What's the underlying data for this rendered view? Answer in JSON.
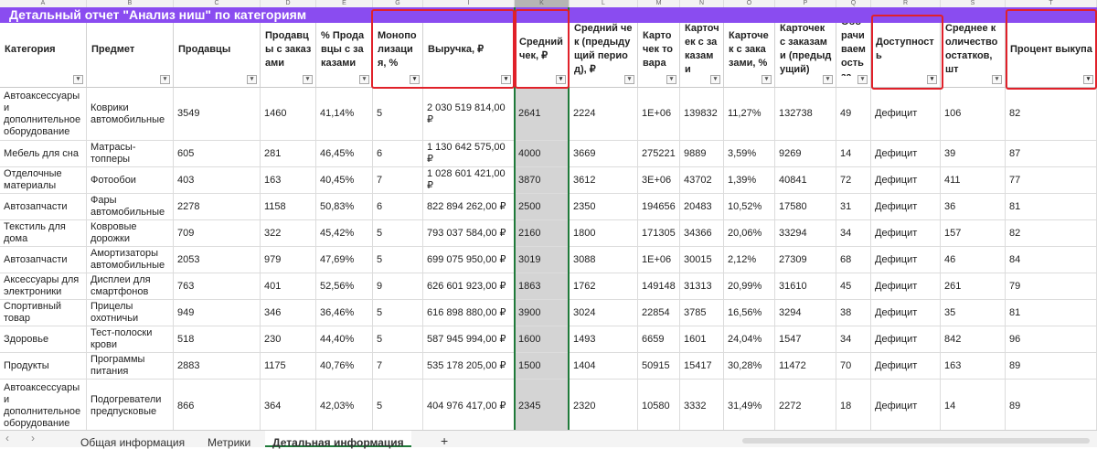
{
  "column_letters": [
    "A",
    "B",
    "C",
    "D",
    "E",
    "G",
    "I",
    "K",
    "L",
    "M",
    "N",
    "O",
    "P",
    "Q",
    "R",
    "S",
    "T"
  ],
  "title": "Детальный отчет \"Анализ ниш\" по категориям",
  "headers": [
    "Категория",
    "Предмет",
    "Продавцы",
    "Продавцы с заказами",
    "% Продавцы с заказами",
    "Монополизация, %",
    "Выручка, ₽",
    "Средний чек, ₽",
    "Средний чек (предыдущий период), ₽",
    "Карточек товара",
    "Карточек с заказами",
    "Карточек с заказами, %",
    "Карточек с заказами (предыдущий)",
    "Оборачиваемость за",
    "Доступность",
    "Среднее количество остатков, шт",
    "Процент выкупа"
  ],
  "rows": [
    [
      "Автоаксессуары и дополнительное оборудование",
      "Коврики автомобильные",
      "3549",
      "1460",
      "41,14%",
      "5",
      "2 030 519 814,00 ₽",
      "2641",
      "2224",
      "1E+06",
      "139832",
      "11,27%",
      "132738",
      "49",
      "Дефицит",
      "106",
      "82"
    ],
    [
      "Мебель для сна",
      "Матрасы-топперы",
      "605",
      "281",
      "46,45%",
      "6",
      "1 130 642 575,00 ₽",
      "4000",
      "3669",
      "275221",
      "9889",
      "3,59%",
      "9269",
      "14",
      "Дефицит",
      "39",
      "87"
    ],
    [
      "Отделочные материалы",
      "Фотообои",
      "403",
      "163",
      "40,45%",
      "7",
      "1 028 601 421,00 ₽",
      "3870",
      "3612",
      "3E+06",
      "43702",
      "1,39%",
      "40841",
      "72",
      "Дефицит",
      "411",
      "77"
    ],
    [
      "Автозапчасти",
      "Фары автомобильные",
      "2278",
      "1158",
      "50,83%",
      "6",
      "822 894 262,00 ₽",
      "2500",
      "2350",
      "194656",
      "20483",
      "10,52%",
      "17580",
      "31",
      "Дефицит",
      "36",
      "81"
    ],
    [
      "Текстиль для дома",
      "Ковровые дорожки",
      "709",
      "322",
      "45,42%",
      "5",
      "793 037 584,00 ₽",
      "2160",
      "1800",
      "171305",
      "34366",
      "20,06%",
      "33294",
      "34",
      "Дефицит",
      "157",
      "82"
    ],
    [
      "Автозапчасти",
      "Амортизаторы автомобильные",
      "2053",
      "979",
      "47,69%",
      "5",
      "699 075 950,00 ₽",
      "3019",
      "3088",
      "1E+06",
      "30015",
      "2,12%",
      "27309",
      "68",
      "Дефицит",
      "46",
      "84"
    ],
    [
      "Аксессуары для электроники",
      "Дисплеи для смартфонов",
      "763",
      "401",
      "52,56%",
      "9",
      "626 601 923,00 ₽",
      "1863",
      "1762",
      "149148",
      "31313",
      "20,99%",
      "31610",
      "45",
      "Дефицит",
      "261",
      "79"
    ],
    [
      "Спортивный товар",
      "Прицелы охотничьи",
      "949",
      "346",
      "36,46%",
      "5",
      "616 898 880,00 ₽",
      "3900",
      "3024",
      "22854",
      "3785",
      "16,56%",
      "3294",
      "38",
      "Дефицит",
      "35",
      "81"
    ],
    [
      "Здоровье",
      "Тест-полоски крови",
      "518",
      "230",
      "44,40%",
      "5",
      "587 945 994,00 ₽",
      "1600",
      "1493",
      "6659",
      "1601",
      "24,04%",
      "1547",
      "34",
      "Дефицит",
      "842",
      "96"
    ],
    [
      "Продукты",
      "Программы питания",
      "2883",
      "1175",
      "40,76%",
      "7",
      "535 178 205,00 ₽",
      "1500",
      "1404",
      "50915",
      "15417",
      "30,28%",
      "11472",
      "70",
      "Дефицит",
      "163",
      "89"
    ],
    [
      "Автоаксессуары и дополнительное оборудование",
      "Подогреватели предпусковые",
      "866",
      "364",
      "42,03%",
      "5",
      "404 976 417,00 ₽",
      "2345",
      "2320",
      "10580",
      "3332",
      "31,49%",
      "2272",
      "18",
      "Дефицит",
      "14",
      "89"
    ]
  ],
  "tabs": [
    "Общая информация",
    "Метрики",
    "Детальная информация"
  ],
  "active_tab": "Детальная информация",
  "add_tab_label": "+",
  "colors": {
    "title_bg": "#8a4cf0",
    "highlight": "#e0212a",
    "selection": "#1f7a3a"
  }
}
